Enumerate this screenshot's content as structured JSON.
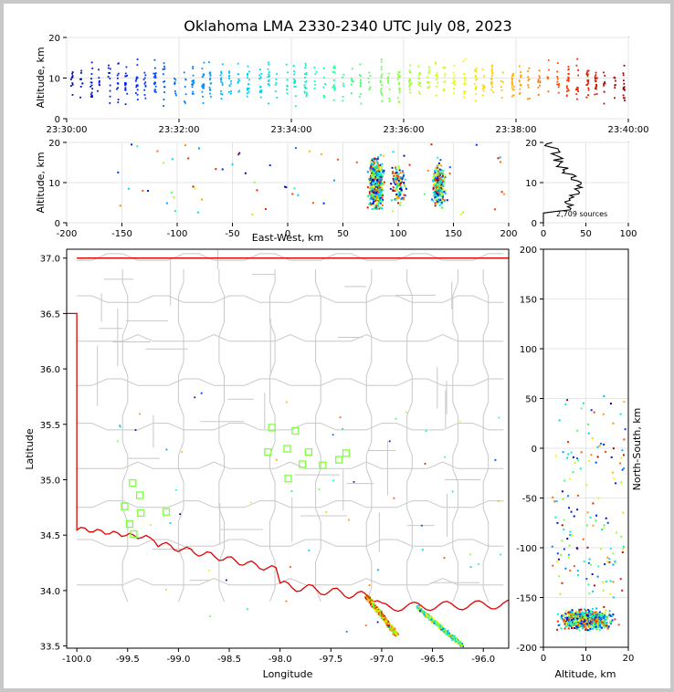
{
  "figure": {
    "title": "Oklahoma LMA 2330-2340 UTC July 08, 2023"
  },
  "chart_data": [
    {
      "name": "altitude-vs-time",
      "type": "scatter",
      "xlabel": "",
      "ylabel": "Altitude, km",
      "x_ticks": [
        "23:30:00",
        "23:32:00",
        "23:34:00",
        "23:36:00",
        "23:38:00",
        "23:40:00"
      ],
      "x_range": [
        "23:30:00",
        "23:40:00"
      ],
      "ylim": [
        0,
        20
      ],
      "y_ticks": [
        0,
        10,
        20
      ],
      "grid": true,
      "color_by": "time"
    },
    {
      "name": "altitude-vs-east-west",
      "type": "scatter",
      "xlabel": "East-West, km",
      "ylabel": "Altitude, km",
      "xlim": [
        -200,
        200
      ],
      "x_ticks": [
        -200,
        -150,
        -100,
        -50,
        0,
        50,
        100,
        150,
        200
      ],
      "ylim": [
        0,
        20
      ],
      "y_ticks": [
        0,
        10,
        20
      ],
      "grid": true,
      "color_by": "time"
    },
    {
      "name": "altitude-histogram",
      "type": "line",
      "annotation": "2,709 sources",
      "xlim": [
        0,
        100
      ],
      "x_ticks": [
        0,
        50,
        100
      ],
      "ylim": [
        0,
        20
      ],
      "y_ticks": [
        0,
        10,
        20
      ],
      "grid": true
    },
    {
      "name": "plan-view-map",
      "type": "scatter",
      "xlabel": "Longitude",
      "ylabel": "Latitude",
      "xlim": [
        -100.1,
        -95.75
      ],
      "x_ticks": [
        "-100.0",
        "-99.5",
        "-99.0",
        "-98.5",
        "-98.0",
        "-97.5",
        "-97.0",
        "-96.5",
        "-96.0"
      ],
      "ylim": [
        33.48,
        37.08
      ],
      "y_ticks": [
        "33.5",
        "34.0",
        "34.5",
        "35.0",
        "35.5",
        "36.0",
        "36.5",
        "37.0"
      ],
      "stations": [
        {
          "lon": -98.08,
          "lat": 35.47
        },
        {
          "lon": -97.85,
          "lat": 35.44
        },
        {
          "lon": -97.93,
          "lat": 35.28
        },
        {
          "lon": -98.12,
          "lat": 35.25
        },
        {
          "lon": -97.72,
          "lat": 35.25
        },
        {
          "lon": -97.35,
          "lat": 35.24
        },
        {
          "lon": -97.42,
          "lat": 35.18
        },
        {
          "lon": -97.78,
          "lat": 35.14
        },
        {
          "lon": -97.58,
          "lat": 35.13
        },
        {
          "lon": -97.92,
          "lat": 35.01
        },
        {
          "lon": -99.45,
          "lat": 34.97
        },
        {
          "lon": -99.38,
          "lat": 34.86
        },
        {
          "lon": -99.53,
          "lat": 34.76
        },
        {
          "lon": -99.37,
          "lat": 34.7
        },
        {
          "lon": -99.12,
          "lat": 34.71
        },
        {
          "lon": -99.48,
          "lat": 34.6
        },
        {
          "lon": -99.44,
          "lat": 34.51
        }
      ],
      "colors": {
        "boundary": "#e00000",
        "counties": "#c8c8c8",
        "stations": "#7fff3f"
      }
    },
    {
      "name": "north-south-vs-altitude",
      "type": "scatter",
      "xlabel": "Altitude, km",
      "ylabel": "North-South, km",
      "xlim": [
        0,
        20
      ],
      "x_ticks": [
        0,
        10,
        20
      ],
      "ylim": [
        -200,
        200
      ],
      "y_ticks": [
        -200,
        -150,
        -100,
        -50,
        0,
        50,
        100,
        150,
        200
      ],
      "grid": true,
      "color_by": "time"
    }
  ]
}
